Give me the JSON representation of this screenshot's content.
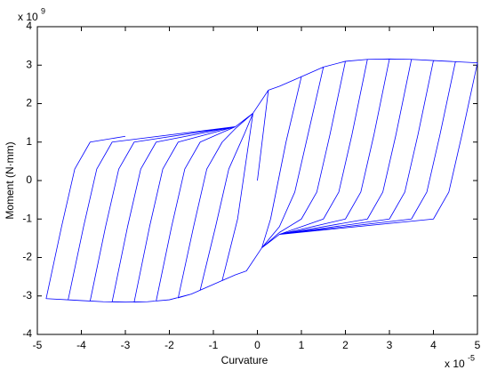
{
  "chart_data": {
    "type": "line",
    "x_label": "Curvature",
    "y_label": "Moment (N·mm)",
    "x_multiplier": {
      "base": "x 10",
      "exponent": "-5"
    },
    "y_multiplier": {
      "base": "x 10",
      "exponent": "9"
    },
    "xlim": [
      -5,
      5
    ],
    "xticks": [
      -5,
      -4,
      -3,
      -2,
      -1,
      0,
      1,
      2,
      3,
      4,
      5
    ],
    "ylim": [
      -4,
      4
    ],
    "yticks": [
      -4,
      -3,
      -2,
      -1,
      0,
      1,
      2,
      3,
      4
    ],
    "grid": false,
    "x": [
      0,
      0.25,
      0.5,
      1,
      0.65,
      0.3,
      0.1,
      -0.25,
      -0.5,
      -0.8,
      -0.45,
      -0.1,
      0.25,
      0.5,
      1,
      1.5,
      1.15,
      0.85,
      0.5,
      0.1,
      -0.25,
      -0.5,
      -1,
      -1.3,
      -0.95,
      -0.65,
      -0.3,
      -0.1,
      0.25,
      0.5,
      1,
      1.5,
      2,
      1.65,
      1.35,
      1.0,
      0.5,
      0.1,
      -0.25,
      -0.5,
      -1,
      -1.5,
      -1.8,
      -1.45,
      -1.15,
      -0.8,
      -0.5,
      -0.1,
      0.25,
      0.5,
      1,
      1.5,
      2,
      2.5,
      2.15,
      1.85,
      1.5,
      0.5,
      0.1,
      -0.25,
      -0.5,
      -1,
      -1.5,
      -2,
      -2.3,
      -1.95,
      -1.65,
      -1.3,
      -0.5,
      -0.1,
      0.25,
      0.5,
      1,
      1.5,
      2,
      2.5,
      3,
      2.65,
      2.35,
      2.0,
      0.5,
      0.1,
      -0.25,
      -0.5,
      -1,
      -1.5,
      -2,
      -2.5,
      -2.8,
      -2.45,
      -2.15,
      -1.8,
      -0.5,
      -0.1,
      0.25,
      0.5,
      1,
      1.5,
      2,
      2.5,
      3,
      3.5,
      3.15,
      2.85,
      2.5,
      0.5,
      0.1,
      -0.25,
      -0.5,
      -1,
      -1.5,
      -2,
      -2.5,
      -3,
      -3.3,
      -2.95,
      -2.65,
      -2.3,
      -0.5,
      -0.1,
      0.25,
      0.5,
      1,
      1.5,
      2,
      2.5,
      3,
      3.5,
      4,
      3.65,
      3.35,
      3.0,
      0.5,
      0.1,
      -0.25,
      -0.5,
      -1,
      -1.5,
      -2,
      -2.5,
      -3,
      -3.5,
      -3.8,
      -3.45,
      -3.15,
      -2.8,
      -0.5,
      -0.1,
      0.25,
      0.5,
      1,
      1.5,
      2,
      2.5,
      3,
      3.5,
      4,
      4.5,
      4.15,
      3.85,
      3.5,
      0.5,
      0.1,
      -0.25,
      -0.5,
      -1,
      -1.5,
      -2,
      -2.5,
      -3,
      -3.5,
      -4,
      -4.3,
      -3.95,
      -3.65,
      -3.3,
      -0.5,
      -0.1,
      0.25,
      0.5,
      1,
      1.5,
      2,
      2.5,
      3,
      3.5,
      4,
      4.5,
      5,
      4.65,
      4.35,
      4.0,
      0.5,
      0.1,
      -0.25,
      -0.5,
      -1,
      -1.5,
      -2,
      -2.5,
      -3,
      -3.5,
      -4,
      -4.8,
      -4.45,
      -4.15,
      -3.8,
      -3.0
    ],
    "series": [
      {
        "color": "#0000ff",
        "values": [
          0,
          2.35,
          2.45,
          2.7,
          1.0,
          -1.0,
          -1.75,
          -2.35,
          -2.45,
          -2.6,
          -1.0,
          1.75,
          2.35,
          2.45,
          2.7,
          2.95,
          1.2,
          -0.3,
          -1.2,
          -1.75,
          -2.35,
          -2.45,
          -2.7,
          -2.85,
          -1.2,
          0.3,
          1.2,
          1.75,
          2.35,
          2.45,
          2.7,
          2.95,
          3.1,
          1.2,
          -0.3,
          -1.0,
          -1.35,
          -1.75,
          -2.35,
          -2.45,
          -2.7,
          -2.95,
          -3.05,
          -1.2,
          0.3,
          1.0,
          1.35,
          1.75,
          2.35,
          2.45,
          2.7,
          2.95,
          3.1,
          3.15,
          1.2,
          -0.3,
          -1.0,
          -1.4,
          -1.75,
          -2.35,
          -2.45,
          -2.7,
          -2.95,
          -3.1,
          -3.13,
          -1.2,
          0.3,
          1.0,
          1.4,
          1.75,
          2.35,
          2.45,
          2.7,
          2.95,
          3.1,
          3.15,
          3.16,
          1.2,
          -0.3,
          -1.0,
          -1.4,
          -1.75,
          -2.35,
          -2.45,
          -2.7,
          -2.95,
          -3.1,
          -3.15,
          -3.16,
          -1.2,
          0.3,
          1.0,
          1.4,
          1.75,
          2.35,
          2.45,
          2.7,
          2.95,
          3.1,
          3.15,
          3.16,
          3.15,
          1.2,
          -0.3,
          -1.0,
          -1.4,
          -1.75,
          -2.35,
          -2.45,
          -2.7,
          -2.95,
          -3.1,
          -3.15,
          -3.16,
          -3.15,
          -1.2,
          0.3,
          1.0,
          1.4,
          1.75,
          2.35,
          2.45,
          2.7,
          2.95,
          3.1,
          3.15,
          3.16,
          3.15,
          3.12,
          1.2,
          -0.3,
          -1.0,
          -1.4,
          -1.75,
          -2.35,
          -2.45,
          -2.7,
          -2.95,
          -3.1,
          -3.15,
          -3.16,
          -3.15,
          -3.13,
          -1.2,
          0.3,
          1.0,
          1.4,
          1.75,
          2.35,
          2.45,
          2.7,
          2.95,
          3.1,
          3.15,
          3.16,
          3.15,
          3.12,
          3.09,
          1.2,
          -0.3,
          -1.0,
          -1.4,
          -1.75,
          -2.35,
          -2.45,
          -2.7,
          -2.95,
          -3.1,
          -3.15,
          -3.16,
          -3.15,
          -3.12,
          -3.1,
          -1.2,
          0.3,
          1.0,
          1.4,
          1.75,
          2.35,
          2.45,
          2.7,
          2.95,
          3.1,
          3.15,
          3.16,
          3.15,
          3.12,
          3.09,
          3.06,
          1.2,
          -0.3,
          -1.0,
          -1.4,
          -1.75,
          -2.35,
          -2.45,
          -2.7,
          -2.95,
          -3.1,
          -3.15,
          -3.16,
          -3.15,
          -3.12,
          -3.07,
          -1.2,
          0.3,
          1.0,
          1.15
        ]
      }
    ]
  }
}
